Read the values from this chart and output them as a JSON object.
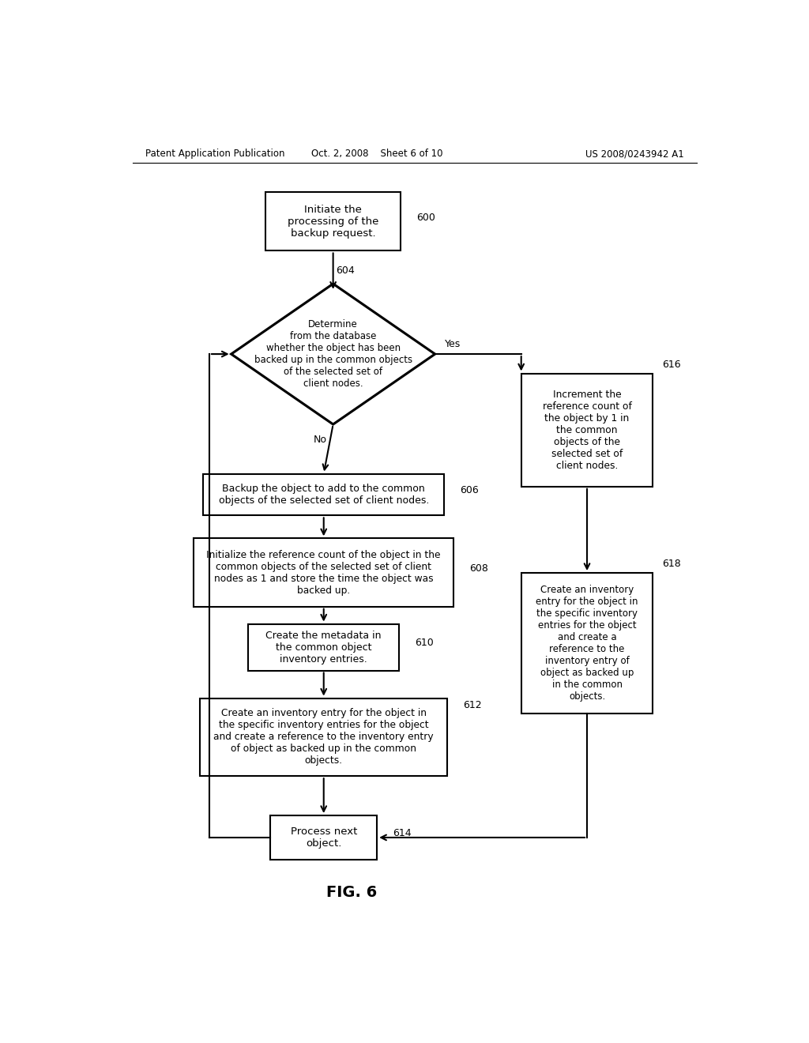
{
  "bg_color": "#ffffff",
  "header_left": "Patent Application Publication",
  "header_mid": "Oct. 2, 2008    Sheet 6 of 10",
  "header_right": "US 2008/0243942 A1",
  "fig_label": "FIG. 6"
}
